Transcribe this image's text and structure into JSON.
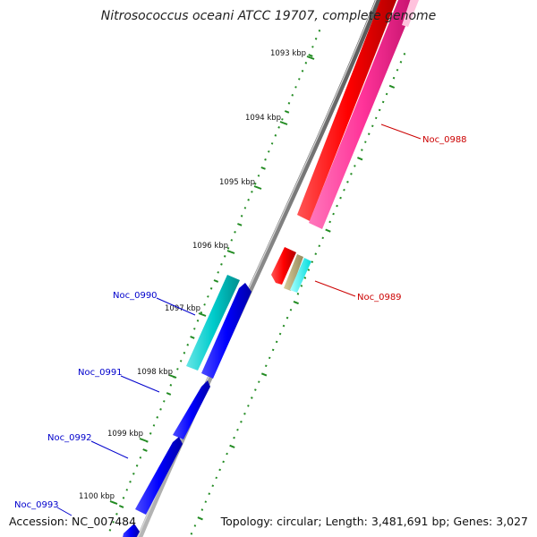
{
  "title": "Nitrosococcus oceani ATCC 19707, complete genome",
  "accession_label": "Accession: NC_007484",
  "summary_label": "Topology: circular; Length: 3,481,691 bp; Genes: 3,027",
  "ticks": [
    "1093 kbp",
    "1094 kbp",
    "1095 kbp",
    "1096 kbp",
    "1097 kbp",
    "1098 kbp",
    "1099 kbp",
    "1100 kbp"
  ],
  "gene_labels": [
    {
      "text": "Noc_0988",
      "strand": "forward",
      "color": "#cc0000"
    },
    {
      "text": "Noc_0989",
      "strand": "forward",
      "color": "#cc0000"
    },
    {
      "text": "Noc_0990",
      "strand": "reverse",
      "color": "#0000cc"
    },
    {
      "text": "Noc_0991",
      "strand": "reverse",
      "color": "#0000cc"
    },
    {
      "text": "Noc_0992",
      "strand": "reverse",
      "color": "#0000cc"
    },
    {
      "text": "Noc_0993",
      "strand": "reverse",
      "color": "#0000cc"
    }
  ],
  "colors": {
    "forward_cds": "#ff0000",
    "forward_rna": "#ff3399",
    "reverse_cds": "#0000ff",
    "reverse_rna": "#00cccc",
    "misc": "#b5a878",
    "gc_dots": "#228b22",
    "backbone": "#8a8a8a"
  }
}
